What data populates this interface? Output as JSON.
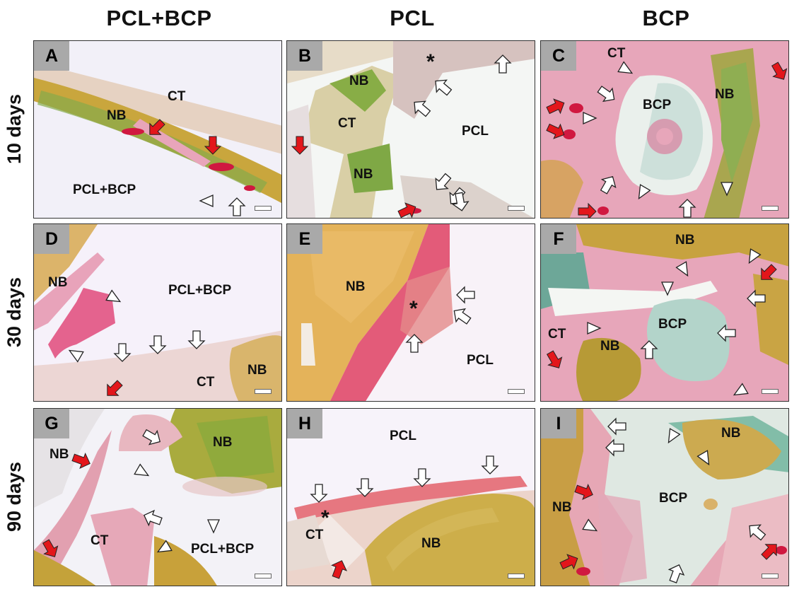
{
  "columns": [
    "PCL+BCP",
    "PCL",
    "BCP"
  ],
  "rows": [
    "10 days",
    "30 days",
    "90 days"
  ],
  "panels": [
    {
      "letter": "A",
      "labels": [
        "CT",
        "NB",
        "PCL+BCP"
      ]
    },
    {
      "letter": "B",
      "labels": [
        "NB",
        "*",
        "CT",
        "PCL",
        "NB"
      ]
    },
    {
      "letter": "C",
      "labels": [
        "CT",
        "NB",
        "BCP"
      ]
    },
    {
      "letter": "D",
      "labels": [
        "NB",
        "PCL+BCP",
        "NB",
        "CT"
      ]
    },
    {
      "letter": "E",
      "labels": [
        "NB",
        "*",
        "PCL"
      ]
    },
    {
      "letter": "F",
      "labels": [
        "NB",
        "BCP",
        "CT",
        "NB"
      ]
    },
    {
      "letter": "G",
      "labels": [
        "NB",
        "NB",
        "CT",
        "PCL+BCP"
      ]
    },
    {
      "letter": "H",
      "labels": [
        "PCL",
        "*",
        "CT",
        "NB"
      ]
    },
    {
      "letter": "I",
      "labels": [
        "NB",
        "BCP",
        "NB"
      ]
    }
  ],
  "colors": {
    "connective_tissue": "#e9a7ba",
    "new_bone": "#c8a13a",
    "new_bone_green": "#7aa84a",
    "bcp_blue": "#9fc8bf",
    "vessel_red": "#d01840",
    "panel_letter_bg": "#a9a9a9"
  },
  "legend_marks": {
    "red_arrow": "red-arrow-icon",
    "white_arrow": "white-arrow-icon",
    "arrowhead": "arrowhead-icon"
  }
}
